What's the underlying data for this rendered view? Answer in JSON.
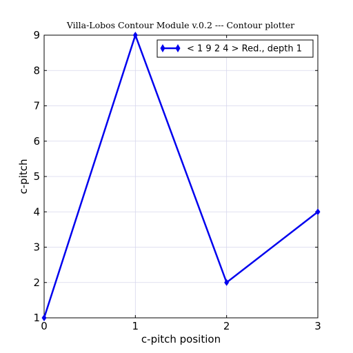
{
  "chart_data": {
    "type": "line",
    "title": "Villa-Lobos Contour Module v.0.2 --- Contour plotter",
    "xlabel": "c-pitch position",
    "ylabel": "c-pitch",
    "xlim": [
      0,
      3
    ],
    "ylim": [
      1,
      9
    ],
    "xticks": [
      0,
      1,
      2,
      3
    ],
    "yticks": [
      1,
      2,
      3,
      4,
      5,
      6,
      7,
      8,
      9
    ],
    "grid": true,
    "legend_position": "top-right",
    "series": [
      {
        "name": "< 1 9 2 4 > Red., depth 1",
        "x": [
          0,
          1,
          2,
          3
        ],
        "y": [
          1,
          9,
          2,
          4
        ],
        "color": "#0000ee",
        "marker": "diamond"
      }
    ]
  }
}
